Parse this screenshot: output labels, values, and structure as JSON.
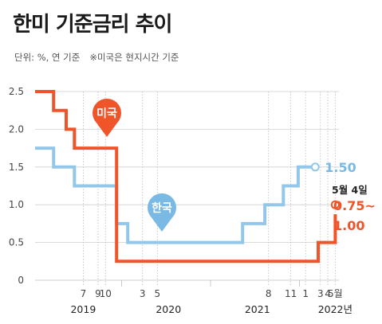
{
  "title": "한미 기준금리 추이",
  "subtitle": {
    "unit": "단위: %, 연 기준",
    "note": "※미국은 현지시간 기준"
  },
  "colors": {
    "us": "#f0552a",
    "korea": "#93c7ea",
    "korea_label": "#7ab9e4",
    "grid": "#cfcfcf"
  },
  "chart_data": {
    "type": "line",
    "step": true,
    "title": "한미 기준금리 추이",
    "ylim": [
      0,
      2.5
    ],
    "yticks": [
      "0",
      "0.5",
      "1.0",
      "1.5",
      "2.0",
      "2.5"
    ],
    "ytick_values": [
      0,
      0.5,
      1.0,
      1.5,
      2.0,
      2.5
    ],
    "month_ticks": [
      {
        "label": "7",
        "t": 6.5
      },
      {
        "label": "9",
        "t": 8.5
      },
      {
        "label": "10",
        "t": 9.5
      },
      {
        "label": "3",
        "t": 14.5
      },
      {
        "label": "5",
        "t": 16.5
      },
      {
        "label": "8",
        "t": 31.5
      },
      {
        "label": "11",
        "t": 34.5
      },
      {
        "label": "1",
        "t": 36.5
      },
      {
        "label": "3",
        "t": 38.5
      },
      {
        "label": "4",
        "t": 39.5
      },
      {
        "label": "5월",
        "t": 40.5
      }
    ],
    "years": [
      {
        "label": "2019",
        "t": 6.5
      },
      {
        "label": "2020",
        "t": 18
      },
      {
        "label": "2021",
        "t": 30
      },
      {
        "label": "2022년",
        "t": 40.5
      }
    ],
    "series": [
      {
        "name": "미국",
        "color": "#f0552a",
        "points": [
          [
            0,
            2.5
          ],
          [
            2.5,
            2.5
          ],
          [
            2.5,
            2.25
          ],
          [
            4.2,
            2.25
          ],
          [
            4.2,
            2.0
          ],
          [
            5.3,
            2.0
          ],
          [
            5.3,
            1.75
          ],
          [
            11,
            1.75
          ],
          [
            11,
            0.25
          ],
          [
            38.2,
            0.25
          ],
          [
            38.2,
            0.5
          ],
          [
            40.5,
            0.5
          ],
          [
            40.5,
            0.875
          ]
        ]
      },
      {
        "name": "한국",
        "color": "#93c7ea",
        "points": [
          [
            0,
            1.75
          ],
          [
            2.5,
            1.75
          ],
          [
            2.5,
            1.5
          ],
          [
            5.3,
            1.5
          ],
          [
            5.3,
            1.25
          ],
          [
            11,
            1.25
          ],
          [
            11,
            0.75
          ],
          [
            12.5,
            0.75
          ],
          [
            12.5,
            0.5
          ],
          [
            28,
            0.5
          ],
          [
            28,
            0.75
          ],
          [
            31,
            0.75
          ],
          [
            31,
            1.0
          ],
          [
            33.5,
            1.0
          ],
          [
            33.5,
            1.25
          ],
          [
            35.5,
            1.25
          ],
          [
            35.5,
            1.5
          ],
          [
            37.8,
            1.5
          ]
        ]
      }
    ],
    "annotations": {
      "us_date": "5월 4일",
      "us_value": "0.75~\n1.00",
      "us_value_line1": "0.75~",
      "us_value_line2": "1.00",
      "korea_value": "1.50"
    }
  }
}
